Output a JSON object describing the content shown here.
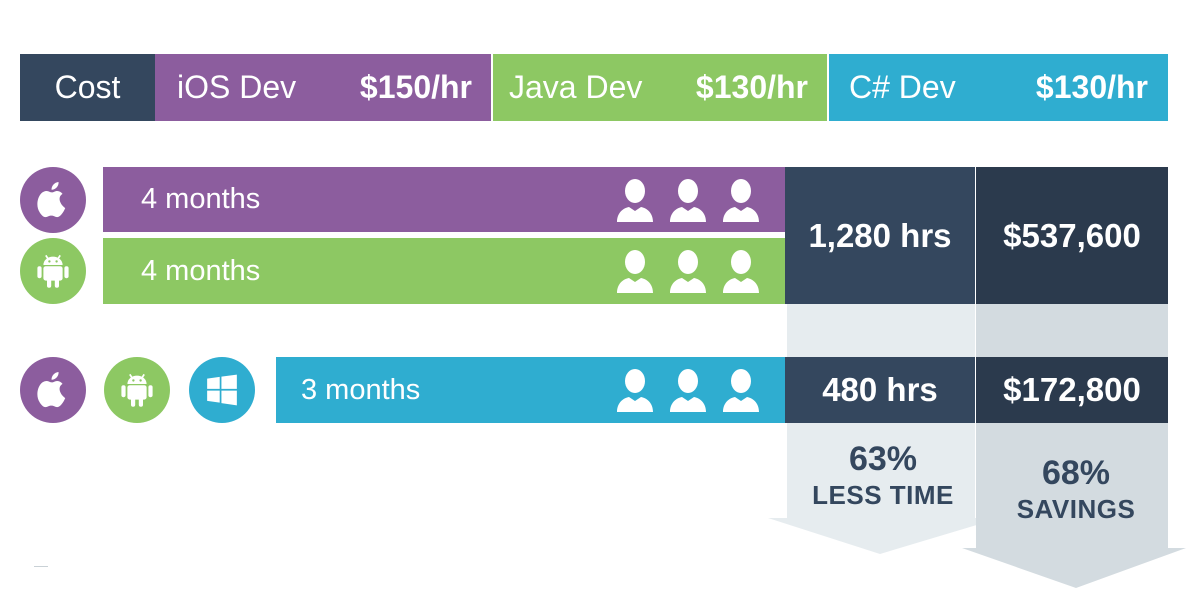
{
  "header": {
    "cost_label": "Cost",
    "ios_label": "iOS Dev",
    "ios_rate": "$150/hr",
    "java_label": "Java Dev",
    "java_rate": "$130/hr",
    "csharp_label": "C# Dev",
    "csharp_rate": "$130/hr"
  },
  "rows": {
    "ios_duration": "4 months",
    "android_duration": "4 months",
    "combined_duration": "3 months"
  },
  "native": {
    "hours": "1,280 hrs",
    "cost": "$537,600"
  },
  "shared": {
    "hours": "480 hrs",
    "cost": "$172,800"
  },
  "comparison": {
    "time_pct": "63%",
    "time_label": "LESS TIME",
    "savings_pct": "68%",
    "savings_label": "SAVINGS"
  },
  "colors": {
    "navy": "#34475e",
    "dark": "#2b3a4d",
    "purple": "#8c5d9e",
    "green": "#8dc863",
    "blue": "#2fadd0",
    "pale": "#e6ecef",
    "pale_dark": "#d3dbe0"
  },
  "icons": [
    "apple-icon",
    "android-icon",
    "windows-icon",
    "person-icon"
  ]
}
